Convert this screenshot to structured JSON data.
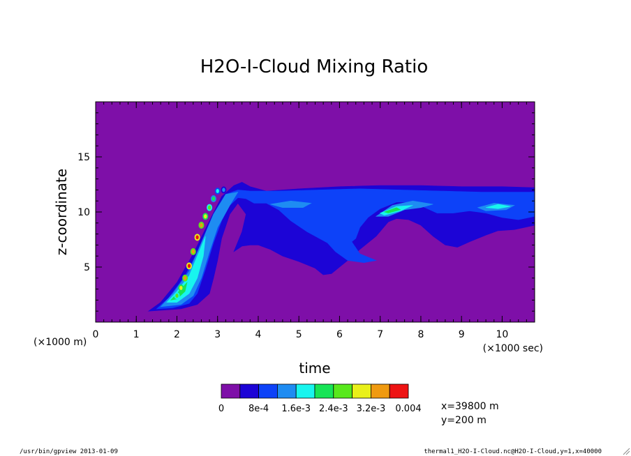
{
  "chart_data": {
    "type": "heatmap",
    "title": "H2O-I-Cloud Mixing Ratio",
    "xlabel": "time",
    "ylabel": "z-coordinate",
    "x_scale_label": "(×1000 sec)",
    "y_scale_label": "(×1000 m)",
    "xlim": [
      0,
      10.8
    ],
    "ylim": [
      0,
      20
    ],
    "x_ticks": [
      "0",
      "1",
      "2",
      "3",
      "4",
      "5",
      "6",
      "7",
      "8",
      "9",
      "10"
    ],
    "y_ticks": [
      "5",
      "10",
      "15"
    ],
    "x_tick_values": [
      0,
      1,
      2,
      3,
      4,
      5,
      6,
      7,
      8,
      9,
      10
    ],
    "y_tick_values": [
      5,
      10,
      15
    ],
    "colorbar": {
      "colors": [
        "#7e0fa8",
        "#1c04d6",
        "#0d42f8",
        "#1e8cf2",
        "#18f5ee",
        "#17e456",
        "#58e81c",
        "#e9f01a",
        "#f09a10",
        "#ee1313",
        "#f9a5a5"
      ],
      "tick_labels": [
        "0",
        "8e-4",
        "1.6e-3",
        "2.4e-3",
        "3.2e-3",
        "0.004"
      ],
      "tick_values": [
        0,
        0.0008,
        0.0016,
        0.0024,
        0.0032,
        0.004
      ]
    },
    "regions": [
      {
        "level": 1,
        "points": [
          [
            1.3,
            1.0
          ],
          [
            1.6,
            1.8
          ],
          [
            2.0,
            3.6
          ],
          [
            2.4,
            6.2
          ],
          [
            2.8,
            9.2
          ],
          [
            3.1,
            11.4
          ],
          [
            3.4,
            12.4
          ],
          [
            3.6,
            12.7
          ],
          [
            3.8,
            12.3
          ],
          [
            4.2,
            11.9
          ],
          [
            5,
            12.1
          ],
          [
            6,
            12.3
          ],
          [
            7,
            12.4
          ],
          [
            8,
            12.4
          ],
          [
            9,
            12.3
          ],
          [
            10,
            12.3
          ],
          [
            10.8,
            12.2
          ],
          [
            10.8,
            8.8
          ],
          [
            10.3,
            8.4
          ],
          [
            9.9,
            8.3
          ],
          [
            9.6,
            7.9
          ],
          [
            9.2,
            7.3
          ],
          [
            8.9,
            6.8
          ],
          [
            8.6,
            7.0
          ],
          [
            8.3,
            7.8
          ],
          [
            8.0,
            8.8
          ],
          [
            7.7,
            9.3
          ],
          [
            7.4,
            9.4
          ],
          [
            7.2,
            9.1
          ],
          [
            6.9,
            7.8
          ],
          [
            6.5,
            6.6
          ],
          [
            6.2,
            5.6
          ],
          [
            6.0,
            5.0
          ],
          [
            5.8,
            4.4
          ],
          [
            5.6,
            4.3
          ],
          [
            5.4,
            4.9
          ],
          [
            5.0,
            5.5
          ],
          [
            4.6,
            6.0
          ],
          [
            4.3,
            6.6
          ],
          [
            4.0,
            7.0
          ],
          [
            3.8,
            7.0
          ],
          [
            3.6,
            6.9
          ],
          [
            3.4,
            6.4
          ],
          [
            3.6,
            8.2
          ],
          [
            3.7,
            9.8
          ],
          [
            3.5,
            10.8
          ],
          [
            3.3,
            9.8
          ],
          [
            3.1,
            7.6
          ],
          [
            3.0,
            5.6
          ],
          [
            2.9,
            4.0
          ],
          [
            2.8,
            2.6
          ],
          [
            2.5,
            1.6
          ],
          [
            2.1,
            1.2
          ]
        ]
      },
      {
        "level": 1,
        "points": [
          [
            5.6,
            7.4
          ],
          [
            6.0,
            7.8
          ],
          [
            6.2,
            7.4
          ],
          [
            6.0,
            6.6
          ],
          [
            5.7,
            6.6
          ]
        ]
      },
      {
        "level": 2,
        "points": [
          [
            1.5,
            1.2
          ],
          [
            1.8,
            2.2
          ],
          [
            2.2,
            4.2
          ],
          [
            2.6,
            7.0
          ],
          [
            2.9,
            9.6
          ],
          [
            3.2,
            11.6
          ],
          [
            3.5,
            12.0
          ],
          [
            3.8,
            11.9
          ],
          [
            4.5,
            11.9
          ],
          [
            5.5,
            12.0
          ],
          [
            6.5,
            12.1
          ],
          [
            7.5,
            12.0
          ],
          [
            8.5,
            11.9
          ],
          [
            9.5,
            11.8
          ],
          [
            10.8,
            11.8
          ],
          [
            10.8,
            9.6
          ],
          [
            10.4,
            9.3
          ],
          [
            10.0,
            9.5
          ],
          [
            9.6,
            9.9
          ],
          [
            9.2,
            10.1
          ],
          [
            8.8,
            9.9
          ],
          [
            8.4,
            9.9
          ],
          [
            8.1,
            10.4
          ],
          [
            7.8,
            10.9
          ],
          [
            7.4,
            10.9
          ],
          [
            7.0,
            10.3
          ],
          [
            6.7,
            9.5
          ],
          [
            6.5,
            8.6
          ],
          [
            6.4,
            7.6
          ],
          [
            6.3,
            7.3
          ],
          [
            6.5,
            6.2
          ],
          [
            6.9,
            5.6
          ],
          [
            6.6,
            5.4
          ],
          [
            6.2,
            5.6
          ],
          [
            5.9,
            6.4
          ],
          [
            5.7,
            7.2
          ],
          [
            5.2,
            8.2
          ],
          [
            4.8,
            9.2
          ],
          [
            4.5,
            10.2
          ],
          [
            4.2,
            10.8
          ],
          [
            3.9,
            10.8
          ],
          [
            3.7,
            11.2
          ],
          [
            3.5,
            11.3
          ],
          [
            3.3,
            10.6
          ],
          [
            3.1,
            9.2
          ],
          [
            2.9,
            7.2
          ],
          [
            2.7,
            4.8
          ],
          [
            2.5,
            2.6
          ],
          [
            2.3,
            1.7
          ],
          [
            1.9,
            1.3
          ]
        ]
      },
      {
        "level": 3,
        "points": [
          [
            1.6,
            1.4
          ],
          [
            1.9,
            2.6
          ],
          [
            2.3,
            4.6
          ],
          [
            2.6,
            7.2
          ],
          [
            2.9,
            9.8
          ],
          [
            3.2,
            11.6
          ],
          [
            3.5,
            11.8
          ],
          [
            3.3,
            10.6
          ],
          [
            3.0,
            8.6
          ],
          [
            2.8,
            6.4
          ],
          [
            2.6,
            4.0
          ],
          [
            2.4,
            2.4
          ],
          [
            2.1,
            1.6
          ]
        ]
      },
      {
        "level": 3,
        "points": [
          [
            6.9,
            9.6
          ],
          [
            7.3,
            10.6
          ],
          [
            7.8,
            11.0
          ],
          [
            8.3,
            10.7
          ],
          [
            8.0,
            10.4
          ],
          [
            7.6,
            10.2
          ],
          [
            7.2,
            9.6
          ]
        ]
      },
      {
        "level": 3,
        "points": [
          [
            9.4,
            10.4
          ],
          [
            9.8,
            10.8
          ],
          [
            10.3,
            10.6
          ],
          [
            10.1,
            10.2
          ],
          [
            9.6,
            10.1
          ]
        ]
      },
      {
        "level": 3,
        "points": [
          [
            4.3,
            10.7
          ],
          [
            4.8,
            11.0
          ],
          [
            5.3,
            10.8
          ],
          [
            5.1,
            10.4
          ],
          [
            4.6,
            10.4
          ]
        ]
      },
      {
        "level": 4,
        "points": [
          [
            1.75,
            1.8
          ],
          [
            2.0,
            2.8
          ],
          [
            2.3,
            4.2
          ],
          [
            2.5,
            6.0
          ],
          [
            2.7,
            7.8
          ],
          [
            2.65,
            6.0
          ],
          [
            2.5,
            4.0
          ],
          [
            2.3,
            2.6
          ],
          [
            2.0,
            1.8
          ]
        ]
      },
      {
        "level": 4,
        "points": [
          [
            7.0,
            9.9
          ],
          [
            7.4,
            10.5
          ],
          [
            7.8,
            10.6
          ],
          [
            7.5,
            10.1
          ],
          [
            7.1,
            9.7
          ]
        ]
      },
      {
        "level": 4,
        "points": [
          [
            9.6,
            10.4
          ],
          [
            9.9,
            10.7
          ],
          [
            10.2,
            10.5
          ],
          [
            9.9,
            10.3
          ]
        ]
      },
      {
        "level": 5,
        "points": [
          [
            1.85,
            2.0
          ],
          [
            2.05,
            2.8
          ],
          [
            2.25,
            3.6
          ],
          [
            2.2,
            2.8
          ],
          [
            2.0,
            2.1
          ]
        ]
      },
      {
        "level": 5,
        "points": [
          [
            7.1,
            10.0
          ],
          [
            7.4,
            10.4
          ],
          [
            7.5,
            10.2
          ],
          [
            7.2,
            9.9
          ]
        ]
      }
    ],
    "cells": [
      {
        "x": 3.0,
        "y": 11.9,
        "level": 4
      },
      {
        "x": 3.15,
        "y": 12.0,
        "level": 3
      },
      {
        "x": 2.9,
        "y": 11.2,
        "level": 5
      },
      {
        "x": 2.8,
        "y": 10.4,
        "level": 6
      },
      {
        "x": 2.7,
        "y": 9.6,
        "level": 7
      },
      {
        "x": 2.6,
        "y": 8.8,
        "level": 8
      },
      {
        "x": 2.5,
        "y": 7.7,
        "level": 9
      },
      {
        "x": 2.4,
        "y": 6.4,
        "level": 8
      },
      {
        "x": 2.3,
        "y": 5.1,
        "level": 9
      },
      {
        "x": 2.2,
        "y": 4.0,
        "level": 8
      },
      {
        "x": 2.1,
        "y": 3.1,
        "level": 7
      },
      {
        "x": 2.0,
        "y": 2.4,
        "level": 6
      }
    ],
    "annotations": [
      "x=39800 m",
      "y=200 m"
    ]
  },
  "footer": {
    "left": "/usr/bin/gpview  2013-01-09",
    "right": "thermal1_H2O-I-Cloud.nc@H2O-I-Cloud,y=1,x=40000"
  }
}
